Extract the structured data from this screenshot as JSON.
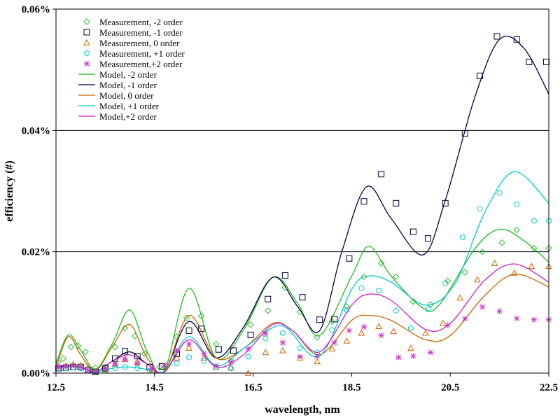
{
  "chart_data": {
    "type": "scatter",
    "xlabel": "wavelength, nm",
    "ylabel": "efficiency (#)",
    "xlim": [
      12.5,
      22.5
    ],
    "ylim": [
      0,
      0.06
    ],
    "x_ticks": [
      "12.5",
      "14.5",
      "16.5",
      "18.5",
      "20.5",
      "22.5"
    ],
    "y_ticks": [
      "0.00%",
      "0.02%",
      "0.04%",
      "0.06%"
    ],
    "y_tick_values": [
      0,
      0.02,
      0.04,
      0.06
    ],
    "x_tick_values": [
      12.5,
      14.5,
      16.5,
      18.5,
      20.5,
      22.5
    ],
    "gridlines": "horizontal",
    "legend_position": "top-left",
    "measurements": [
      {
        "name": "Measurement, -2 order",
        "marker": "diamond",
        "color": "#33bb33",
        "x": [
          12.55,
          12.65,
          12.8,
          12.95,
          13.1,
          13.3,
          13.5,
          13.7,
          13.9,
          14.1,
          14.3,
          14.6,
          14.75,
          14.95,
          15.15,
          15.45,
          15.75,
          16.05,
          16.45,
          16.8,
          17.15,
          17.45,
          17.8,
          18.1,
          18.4,
          18.75,
          19.1,
          19.4,
          19.75,
          20.1,
          20.45,
          20.8,
          21.15,
          21.55,
          21.85,
          22.2,
          22.5
        ],
        "y": [
          0.0019,
          0.0024,
          0.0043,
          0.0045,
          0.0035,
          0.0009,
          0.001,
          0.0043,
          0.0074,
          0.0061,
          0.0032,
          0.001,
          0.0012,
          0.006,
          0.0091,
          0.0094,
          0.0048,
          0.002,
          0.008,
          0.0103,
          0.0141,
          0.0101,
          0.0059,
          0.0085,
          0.011,
          0.0159,
          0.0181,
          0.0159,
          0.0118,
          0.0113,
          0.0152,
          0.0166,
          0.02,
          0.0215,
          0.0236,
          0.0206,
          0.0206
        ]
      },
      {
        "name": "Measurement, -1 order",
        "marker": "square",
        "color": "#000033",
        "x": [
          12.55,
          12.7,
          12.85,
          13.0,
          13.15,
          13.3,
          13.5,
          13.7,
          13.9,
          14.15,
          14.4,
          14.65,
          14.95,
          15.2,
          15.45,
          15.8,
          16.1,
          16.45,
          16.8,
          17.15,
          17.5,
          17.85,
          18.15,
          18.45,
          18.75,
          19.1,
          19.4,
          19.75,
          20.05,
          20.4,
          20.8,
          21.1,
          21.45,
          21.85,
          22.1,
          22.45
        ],
        "y": [
          0.0008,
          0.0009,
          0.001,
          0.001,
          0.0005,
          0.0002,
          0.0008,
          0.0024,
          0.0036,
          0.0028,
          0.001,
          0.0011,
          0.0032,
          0.007,
          0.0073,
          0.0039,
          0.0037,
          0.0063,
          0.0122,
          0.0161,
          0.0125,
          0.0088,
          0.0089,
          0.0189,
          0.0283,
          0.0328,
          0.028,
          0.0233,
          0.0222,
          0.028,
          0.0395,
          0.049,
          0.0555,
          0.055,
          0.0513,
          0.0513
        ]
      },
      {
        "name": "Measurement, 0 order",
        "marker": "triangle",
        "color": "#cc6600",
        "x": [
          12.55,
          12.7,
          12.85,
          13.0,
          13.15,
          13.3,
          13.5,
          13.7,
          13.9,
          14.15,
          14.45,
          14.7,
          14.95,
          15.2,
          15.5,
          15.75,
          16.05,
          16.4,
          16.75,
          17.1,
          17.45,
          17.8,
          18.1,
          18.4,
          18.7,
          19.05,
          19.35,
          19.7,
          20.0,
          20.35,
          20.7,
          21.05,
          21.4,
          21.8,
          22.15,
          22.5
        ],
        "y": [
          0.0009,
          0.0012,
          0.0014,
          0.0013,
          0.0009,
          0.0003,
          0.0006,
          0.0015,
          0.0023,
          0.0018,
          0.0006,
          0.0009,
          0.0025,
          0.0041,
          0.0025,
          0.001,
          0.0009,
          0.0,
          0.0034,
          0.0037,
          0.0025,
          0.0019,
          0.004,
          0.0053,
          0.0066,
          0.0077,
          0.0069,
          0.0041,
          0.0066,
          0.0082,
          0.0124,
          0.0154,
          0.0181,
          0.0165,
          0.0176,
          0.0176
        ]
      },
      {
        "name": "Measurement, +1 order",
        "marker": "circle",
        "color": "#00cccc",
        "x": [
          12.55,
          12.7,
          12.85,
          13.0,
          13.15,
          13.3,
          13.5,
          13.7,
          13.9,
          14.15,
          14.4,
          14.65,
          14.95,
          15.2,
          15.5,
          15.75,
          16.05,
          16.4,
          16.75,
          17.1,
          17.45,
          17.8,
          18.1,
          18.4,
          18.7,
          19.05,
          19.4,
          19.7,
          20.05,
          20.4,
          20.75,
          21.1,
          21.5,
          21.85,
          22.2,
          22.5
        ],
        "y": [
          0.0007,
          0.0008,
          0.0009,
          0.0008,
          0.0005,
          0.0002,
          0.0004,
          0.0008,
          0.001,
          0.0008,
          0.0004,
          0.0005,
          0.0016,
          0.0026,
          0.002,
          0.001,
          0.0008,
          0.0027,
          0.0057,
          0.0066,
          0.0041,
          0.0034,
          0.0071,
          0.0104,
          0.014,
          0.0136,
          0.0103,
          0.0074,
          0.0105,
          0.0148,
          0.0224,
          0.0271,
          0.0297,
          0.0278,
          0.0251,
          0.0251
        ]
      },
      {
        "name": "Measurement,+2 order",
        "marker": "star",
        "color": "#cc33cc",
        "x": [
          12.55,
          12.7,
          12.85,
          13.0,
          13.15,
          13.3,
          13.5,
          13.7,
          13.9,
          14.15,
          14.45,
          14.7,
          14.95,
          15.2,
          15.5,
          15.75,
          16.05,
          16.4,
          16.75,
          17.1,
          17.45,
          17.8,
          18.15,
          18.45,
          18.75,
          19.1,
          19.45,
          19.75,
          20.1,
          20.45,
          20.8,
          21.15,
          21.5,
          21.85,
          22.2,
          22.5
        ],
        "y": [
          0.001,
          0.0011,
          0.0012,
          0.001,
          0.0005,
          0.0002,
          0.0007,
          0.0015,
          0.0022,
          0.0016,
          0.0008,
          0.0013,
          0.0037,
          0.0048,
          0.0032,
          0.0012,
          0.0018,
          0.004,
          0.0065,
          0.005,
          0.0027,
          0.0028,
          0.005,
          0.007,
          0.0076,
          0.0062,
          0.0026,
          0.0028,
          0.0034,
          0.0079,
          0.009,
          0.0109,
          0.0102,
          0.009,
          0.0088,
          0.0088
        ]
      }
    ],
    "models": [
      {
        "name": "Model, -2 order",
        "color": "#22bb22",
        "x": [
          12.5,
          12.75,
          13.0,
          13.3,
          13.65,
          14.0,
          14.35,
          14.7,
          15.2,
          15.75,
          16.3,
          16.9,
          17.4,
          17.85,
          18.5,
          18.85,
          19.3,
          19.95,
          20.3,
          21.0,
          21.5,
          22.0,
          22.5
        ],
        "y": [
          0.0015,
          0.0063,
          0.0038,
          0.0006,
          0.005,
          0.0104,
          0.0035,
          0.0004,
          0.014,
          0.0025,
          0.007,
          0.0158,
          0.0115,
          0.0062,
          0.016,
          0.0209,
          0.016,
          0.0107,
          0.0115,
          0.0205,
          0.0237,
          0.0218,
          0.0183
        ]
      },
      {
        "name": "Model, -1 order",
        "color": "#000044",
        "x": [
          12.5,
          12.75,
          13.0,
          13.3,
          13.65,
          14.0,
          14.35,
          14.7,
          15.2,
          15.75,
          16.3,
          16.9,
          17.4,
          17.85,
          18.3,
          18.8,
          19.3,
          19.95,
          20.4,
          21.0,
          21.5,
          22.0,
          22.5
        ],
        "y": [
          0.001,
          0.0012,
          0.001,
          0.0002,
          0.002,
          0.0035,
          0.0015,
          0.0003,
          0.0085,
          0.0025,
          0.0075,
          0.0158,
          0.011,
          0.007,
          0.02,
          0.0307,
          0.0255,
          0.0195,
          0.0285,
          0.0455,
          0.055,
          0.0535,
          0.046
        ]
      },
      {
        "name": "Model, 0 order",
        "color": "#cc6600",
        "x": [
          12.5,
          12.75,
          13.0,
          13.3,
          13.65,
          14.0,
          14.35,
          14.7,
          15.2,
          15.75,
          16.3,
          16.9,
          17.3,
          17.85,
          18.5,
          18.85,
          19.3,
          20.0,
          20.5,
          21.2,
          21.8,
          22.5
        ],
        "y": [
          0.0008,
          0.006,
          0.003,
          0.0004,
          0.0045,
          0.008,
          0.0025,
          0.0002,
          0.0095,
          0.0025,
          0.004,
          0.0082,
          0.007,
          0.003,
          0.0087,
          0.0095,
          0.0087,
          0.0055,
          0.0062,
          0.0128,
          0.0163,
          0.0142
        ]
      },
      {
        "name": "Model, +1 order",
        "color": "#00cccc",
        "x": [
          12.5,
          12.75,
          13.0,
          13.3,
          13.65,
          14.0,
          14.35,
          14.7,
          15.2,
          15.75,
          16.3,
          16.9,
          17.2,
          17.85,
          18.5,
          18.85,
          19.3,
          20.0,
          20.6,
          21.2,
          21.8,
          22.5
        ],
        "y": [
          0.0008,
          0.001,
          0.0009,
          0.0002,
          0.0008,
          0.001,
          0.0006,
          0.0002,
          0.006,
          0.0012,
          0.004,
          0.0075,
          0.0073,
          0.0028,
          0.0138,
          0.016,
          0.015,
          0.0112,
          0.0148,
          0.0265,
          0.0332,
          0.028
        ]
      },
      {
        "name": "Model,+2 order",
        "color": "#cc22cc",
        "x": [
          12.5,
          12.75,
          13.0,
          13.3,
          13.65,
          14.0,
          14.35,
          14.7,
          15.2,
          15.75,
          16.3,
          16.9,
          17.3,
          17.85,
          18.5,
          18.85,
          19.3,
          20.0,
          20.5,
          21.2,
          21.8,
          22.5
        ],
        "y": [
          0.001,
          0.0012,
          0.001,
          0.0002,
          0.002,
          0.003,
          0.0015,
          0.0002,
          0.0055,
          0.001,
          0.003,
          0.008,
          0.007,
          0.0035,
          0.0112,
          0.013,
          0.012,
          0.0072,
          0.0082,
          0.0153,
          0.018,
          0.015
        ]
      }
    ]
  }
}
